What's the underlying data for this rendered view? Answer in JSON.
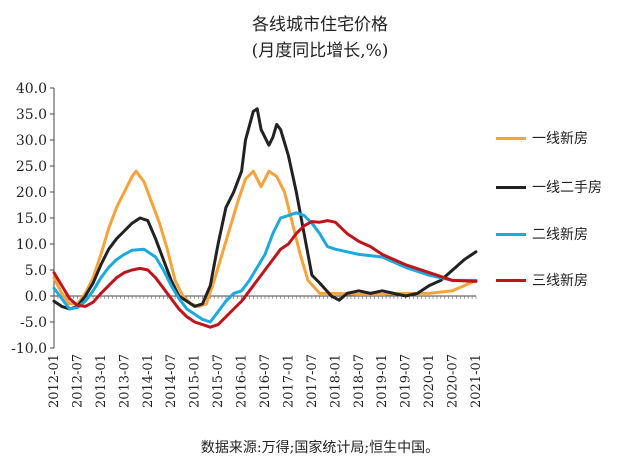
{
  "header": {
    "title": "各线城市住宅价格",
    "subtitle": "(月度同比增长,%)"
  },
  "source": "数据来源:万得;国家统计局;恒生中国。",
  "chart_data": {
    "type": "line",
    "title": "各线城市住宅价格",
    "subtitle": "(月度同比增长,%)",
    "xlabel": "",
    "ylabel": "",
    "ylim": [
      -10,
      40
    ],
    "y_ticks": [
      "40.0",
      "35.0",
      "30.0",
      "25.0",
      "20.0",
      "15.0",
      "10.0",
      "5.0",
      "0.0",
      "-5.0",
      "-10.0"
    ],
    "x_ticks": [
      "2012-01",
      "2012-07",
      "2013-01",
      "2013-07",
      "2014-01",
      "2014-07",
      "2015-01",
      "2015-07",
      "2016-01",
      "2016-07",
      "2017-01",
      "2017-07",
      "2018-01",
      "2018-07",
      "2019-01",
      "2019-07",
      "2020-01",
      "2020-07",
      "2021-01"
    ],
    "x_start": "2012-01",
    "x_end": "2021-01",
    "grid": false,
    "legend_position": "right",
    "series": [
      {
        "name": "一线新房",
        "color": "#F5A33A",
        "points": [
          [
            "2012-01",
            3.5
          ],
          [
            "2012-03",
            0.5
          ],
          [
            "2012-05",
            -1.5
          ],
          [
            "2012-07",
            -1.5
          ],
          [
            "2012-09",
            0.5
          ],
          [
            "2012-11",
            3.5
          ],
          [
            "2013-01",
            8
          ],
          [
            "2013-03",
            13
          ],
          [
            "2013-05",
            17
          ],
          [
            "2013-07",
            20
          ],
          [
            "2013-09",
            23
          ],
          [
            "2013-10",
            24
          ],
          [
            "2013-12",
            22
          ],
          [
            "2014-02",
            18
          ],
          [
            "2014-04",
            14
          ],
          [
            "2014-06",
            9
          ],
          [
            "2014-08",
            3
          ],
          [
            "2014-10",
            0
          ],
          [
            "2014-12",
            -1.5
          ],
          [
            "2015-02",
            -2
          ],
          [
            "2015-04",
            -1.5
          ],
          [
            "2015-06",
            3
          ],
          [
            "2015-08",
            8
          ],
          [
            "2015-10",
            13
          ],
          [
            "2015-12",
            18
          ],
          [
            "2016-02",
            22.5
          ],
          [
            "2016-04",
            24
          ],
          [
            "2016-06",
            21
          ],
          [
            "2016-08",
            24
          ],
          [
            "2016-10",
            23
          ],
          [
            "2016-12",
            20
          ],
          [
            "2017-02",
            14
          ],
          [
            "2017-04",
            8
          ],
          [
            "2017-06",
            3
          ],
          [
            "2017-09",
            0.5
          ],
          [
            "2018-01",
            0.5
          ],
          [
            "2018-07",
            0.3
          ],
          [
            "2019-01",
            0.3
          ],
          [
            "2019-07",
            0.5
          ],
          [
            "2020-01",
            0.5
          ],
          [
            "2020-07",
            1
          ],
          [
            "2020-10",
            2
          ],
          [
            "2021-01",
            3
          ]
        ]
      },
      {
        "name": "一线二手房",
        "color": "#222222",
        "points": [
          [
            "2012-01",
            -1
          ],
          [
            "2012-03",
            -2
          ],
          [
            "2012-05",
            -2.5
          ],
          [
            "2012-07",
            -2
          ],
          [
            "2012-09",
            0
          ],
          [
            "2012-11",
            2.5
          ],
          [
            "2013-01",
            6
          ],
          [
            "2013-03",
            9
          ],
          [
            "2013-05",
            11
          ],
          [
            "2013-07",
            12.5
          ],
          [
            "2013-09",
            14
          ],
          [
            "2013-11",
            15
          ],
          [
            "2014-01",
            14.5
          ],
          [
            "2014-03",
            11
          ],
          [
            "2014-05",
            7
          ],
          [
            "2014-07",
            3
          ],
          [
            "2014-09",
            0
          ],
          [
            "2014-11",
            -1
          ],
          [
            "2015-01",
            -2
          ],
          [
            "2015-03",
            -1.5
          ],
          [
            "2015-05",
            2
          ],
          [
            "2015-07",
            10
          ],
          [
            "2015-09",
            17
          ],
          [
            "2015-11",
            20
          ],
          [
            "2016-01",
            24
          ],
          [
            "2016-02",
            30
          ],
          [
            "2016-04",
            35.5
          ],
          [
            "2016-05",
            36
          ],
          [
            "2016-06",
            32
          ],
          [
            "2016-08",
            29
          ],
          [
            "2016-09",
            30.5
          ],
          [
            "2016-10",
            33
          ],
          [
            "2016-11",
            32
          ],
          [
            "2017-01",
            27
          ],
          [
            "2017-03",
            20
          ],
          [
            "2017-05",
            12
          ],
          [
            "2017-07",
            4
          ],
          [
            "2017-09",
            2.5
          ],
          [
            "2017-12",
            0
          ],
          [
            "2018-02",
            -0.8
          ],
          [
            "2018-04",
            0.5
          ],
          [
            "2018-07",
            1
          ],
          [
            "2018-10",
            0.5
          ],
          [
            "2019-01",
            1
          ],
          [
            "2019-04",
            0.5
          ],
          [
            "2019-07",
            0
          ],
          [
            "2019-10",
            0.5
          ],
          [
            "2020-01",
            2
          ],
          [
            "2020-04",
            3
          ],
          [
            "2020-07",
            5
          ],
          [
            "2020-10",
            7
          ],
          [
            "2021-01",
            8.5
          ]
        ]
      },
      {
        "name": "二线新房",
        "color": "#1BA9DF",
        "points": [
          [
            "2012-01",
            1.5
          ],
          [
            "2012-03",
            -0.5
          ],
          [
            "2012-05",
            -2.5
          ],
          [
            "2012-07",
            -2.2
          ],
          [
            "2012-09",
            -1
          ],
          [
            "2012-11",
            1
          ],
          [
            "2013-01",
            3.5
          ],
          [
            "2013-03",
            5.5
          ],
          [
            "2013-05",
            7
          ],
          [
            "2013-07",
            8
          ],
          [
            "2013-09",
            8.8
          ],
          [
            "2013-12",
            9
          ],
          [
            "2014-03",
            7.5
          ],
          [
            "2014-05",
            5
          ],
          [
            "2014-07",
            2
          ],
          [
            "2014-09",
            -0.5
          ],
          [
            "2014-11",
            -2.5
          ],
          [
            "2015-01",
            -3.5
          ],
          [
            "2015-03",
            -4.5
          ],
          [
            "2015-05",
            -5
          ],
          [
            "2015-07",
            -3
          ],
          [
            "2015-09",
            -1
          ],
          [
            "2015-11",
            0.5
          ],
          [
            "2016-01",
            1
          ],
          [
            "2016-03",
            3
          ],
          [
            "2016-05",
            5.5
          ],
          [
            "2016-07",
            8
          ],
          [
            "2016-09",
            12
          ],
          [
            "2016-11",
            15
          ],
          [
            "2017-01",
            15.5
          ],
          [
            "2017-03",
            16
          ],
          [
            "2017-05",
            15.5
          ],
          [
            "2017-07",
            14
          ],
          [
            "2017-09",
            12
          ],
          [
            "2017-11",
            9.5
          ],
          [
            "2018-01",
            9
          ],
          [
            "2018-04",
            8.5
          ],
          [
            "2018-07",
            8
          ],
          [
            "2019-01",
            7.5
          ],
          [
            "2019-07",
            5.5
          ],
          [
            "2020-01",
            4
          ],
          [
            "2020-07",
            3
          ],
          [
            "2021-01",
            3
          ]
        ]
      },
      {
        "name": "三线新房",
        "color": "#C0141B",
        "points": [
          [
            "2012-01",
            4.5
          ],
          [
            "2012-03",
            2
          ],
          [
            "2012-05",
            -0.5
          ],
          [
            "2012-07",
            -1.8
          ],
          [
            "2012-09",
            -2
          ],
          [
            "2012-11",
            -1.2
          ],
          [
            "2013-01",
            0.5
          ],
          [
            "2013-03",
            2
          ],
          [
            "2013-05",
            3.5
          ],
          [
            "2013-07",
            4.5
          ],
          [
            "2013-09",
            5
          ],
          [
            "2013-11",
            5.3
          ],
          [
            "2014-01",
            5
          ],
          [
            "2014-03",
            3.5
          ],
          [
            "2014-05",
            1.5
          ],
          [
            "2014-07",
            -0.5
          ],
          [
            "2014-09",
            -2.5
          ],
          [
            "2014-11",
            -4
          ],
          [
            "2015-01",
            -5
          ],
          [
            "2015-03",
            -5.5
          ],
          [
            "2015-05",
            -6
          ],
          [
            "2015-07",
            -5.5
          ],
          [
            "2015-09",
            -4
          ],
          [
            "2015-11",
            -2.5
          ],
          [
            "2016-01",
            -1
          ],
          [
            "2016-03",
            1
          ],
          [
            "2016-05",
            3
          ],
          [
            "2016-07",
            5
          ],
          [
            "2016-09",
            7
          ],
          [
            "2016-11",
            9
          ],
          [
            "2017-01",
            10
          ],
          [
            "2017-03",
            12
          ],
          [
            "2017-05",
            13.5
          ],
          [
            "2017-07",
            14.3
          ],
          [
            "2017-09",
            14.2
          ],
          [
            "2017-11",
            14.5
          ],
          [
            "2018-01",
            14.2
          ],
          [
            "2018-04",
            12
          ],
          [
            "2018-07",
            10.5
          ],
          [
            "2018-10",
            9.5
          ],
          [
            "2019-01",
            8
          ],
          [
            "2019-07",
            6
          ],
          [
            "2020-01",
            4.5
          ],
          [
            "2020-07",
            3
          ],
          [
            "2021-01",
            2.8
          ]
        ]
      }
    ]
  }
}
